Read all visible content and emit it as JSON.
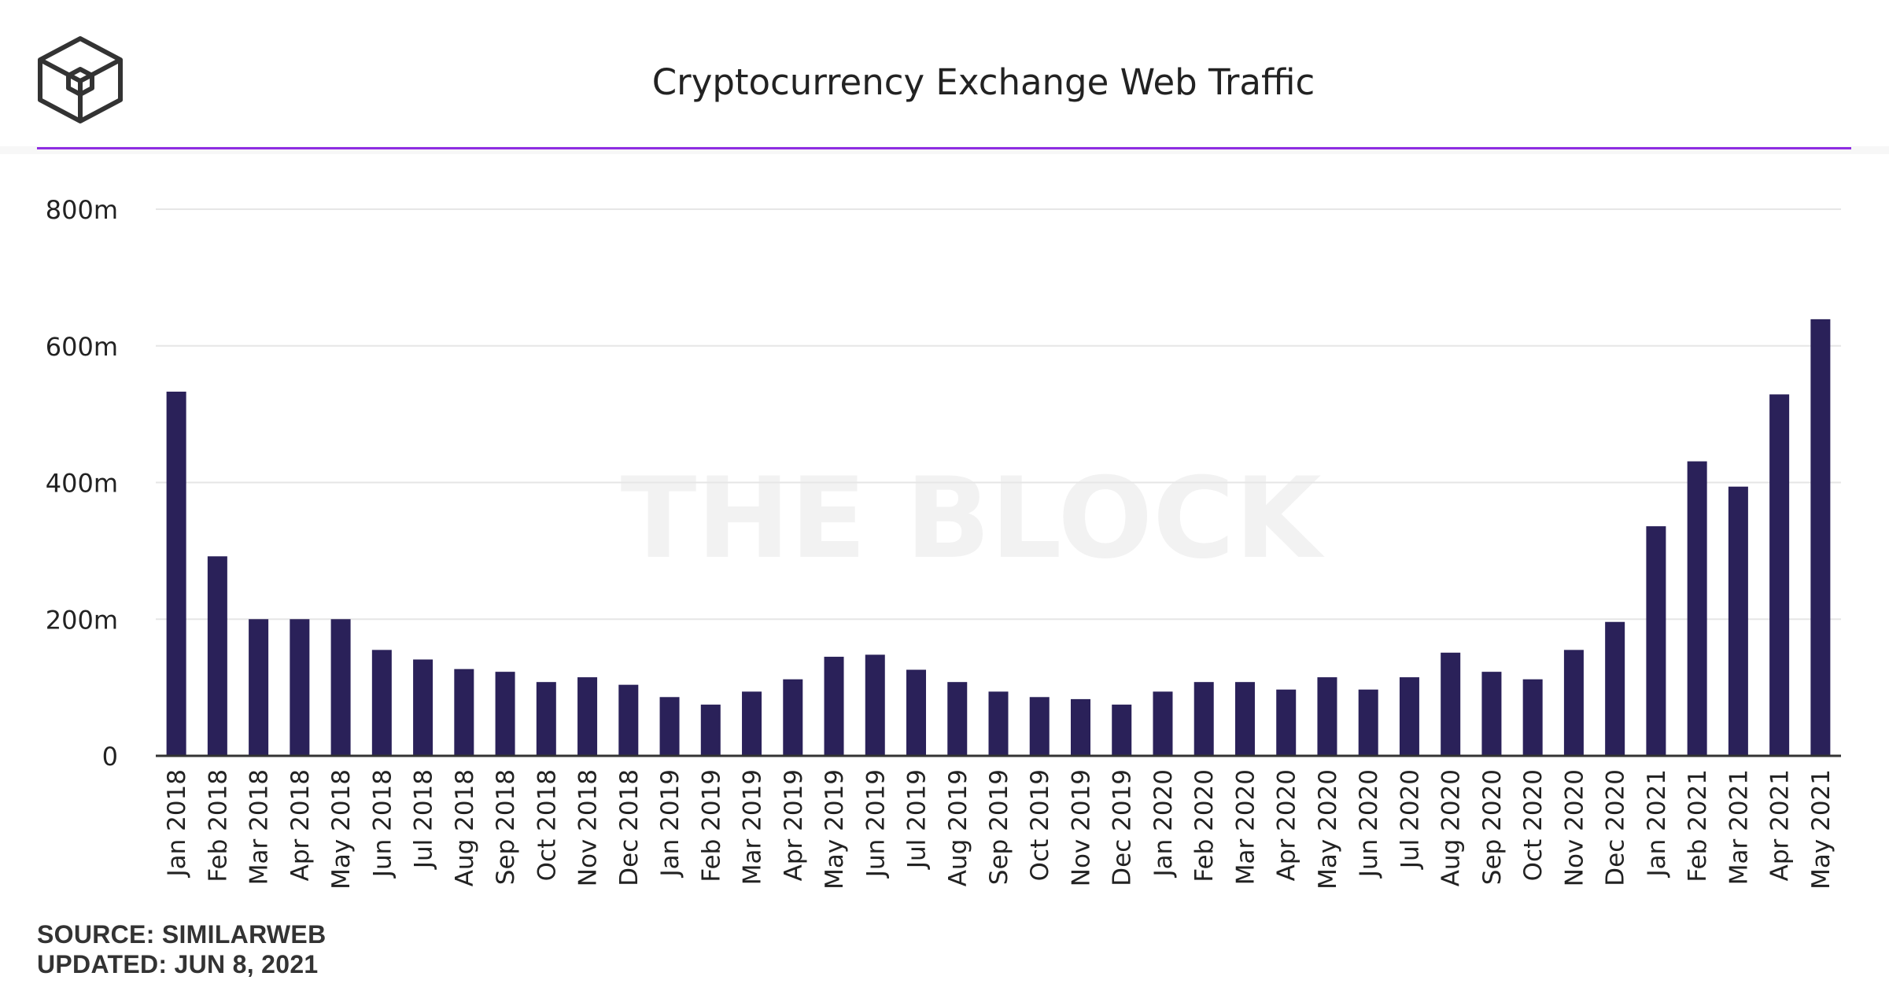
{
  "brand": {
    "logo_icon": "the-block-cube-logo-icon",
    "watermark": "THE BLOCK"
  },
  "colors": {
    "bar": "#2a2159",
    "accent_rule": "#8e2de2",
    "grid": "#e6e6e6",
    "axis": "#333333",
    "text": "#222222",
    "watermark": "#f2f2f2"
  },
  "footer": {
    "source": "SOURCE: SIMILARWEB",
    "updated": "UPDATED: JUN 8, 2021"
  },
  "chart_data": {
    "type": "bar",
    "title": "Cryptocurrency Exchange Web Traffic",
    "xlabel": "",
    "ylabel": "",
    "ylim": [
      0,
      800
    ],
    "yticks": [
      0,
      200,
      400,
      600,
      800
    ],
    "ytick_labels": [
      "0",
      "200m",
      "400m",
      "600m",
      "800m"
    ],
    "grid": true,
    "legend": "none",
    "unit": "m",
    "categories": [
      "Jan 2018",
      "Feb 2018",
      "Mar 2018",
      "Apr 2018",
      "May 2018",
      "Jun 2018",
      "Jul 2018",
      "Aug 2018",
      "Sep 2018",
      "Oct 2018",
      "Nov 2018",
      "Dec 2018",
      "Jan 2019",
      "Feb 2019",
      "Mar 2019",
      "Apr 2019",
      "May 2019",
      "Jun 2019",
      "Jul 2019",
      "Aug 2019",
      "Sep 2019",
      "Oct 2019",
      "Nov 2019",
      "Dec 2019",
      "Jan 2020",
      "Feb 2020",
      "Mar 2020",
      "Apr 2020",
      "May 2020",
      "Jun 2020",
      "Jul 2020",
      "Aug 2020",
      "Sep 2020",
      "Oct 2020",
      "Nov 2020",
      "Dec 2020",
      "Jan 2021",
      "Feb 2021",
      "Mar 2021",
      "Apr 2021",
      "May 2021"
    ],
    "values": [
      533,
      292,
      200,
      200,
      200,
      155,
      141,
      127,
      123,
      108,
      115,
      104,
      86,
      75,
      94,
      112,
      145,
      148,
      126,
      108,
      94,
      86,
      83,
      75,
      94,
      108,
      108,
      97,
      115,
      97,
      115,
      151,
      123,
      112,
      155,
      196,
      336,
      431,
      394,
      529,
      639
    ]
  }
}
